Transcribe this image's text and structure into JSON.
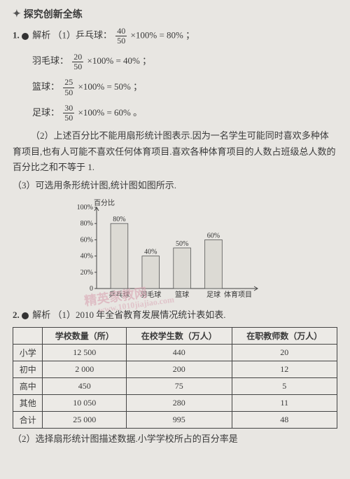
{
  "section_title": "探究创新全练",
  "star_glyph": "✦",
  "problems": {
    "p1": {
      "number": "1.",
      "label": "解析",
      "part1_prefix": "（1）乒乓球：",
      "formulas": [
        {
          "name": "乒乓球",
          "num": "40",
          "den": "50",
          "pct": "80%"
        },
        {
          "name": "羽毛球",
          "num": "20",
          "den": "50",
          "pct": "40%"
        },
        {
          "name": "篮球",
          "num": "25",
          "den": "50",
          "pct": "50%"
        },
        {
          "name": "足球",
          "num": "30",
          "den": "50",
          "pct": "60%"
        }
      ],
      "times100": "×100% =",
      "semi": "；",
      "period": "。",
      "colon": "：",
      "part2": "（2）上述百分比不能用扇形统计图表示.因为一名学生可能同时喜欢多种体育项目,也有人可能不喜欢任何体育项目.喜欢各种体育项目的人数占班级总人数的百分比之和不等于 1.",
      "part3": "（3）可选用条形统计图,统计图如图所示.",
      "chart": {
        "type": "bar",
        "y_label": "百分比",
        "x_label": "体育项目",
        "y_ticks": [
          "0",
          "20%",
          "40%",
          "60%",
          "80%",
          "100%"
        ],
        "ylim": [
          0,
          100
        ],
        "categories": [
          "乒乓球",
          "羽毛球",
          "篮球",
          "足球"
        ],
        "values": [
          80,
          40,
          50,
          60
        ],
        "value_labels": [
          "80%",
          "40%",
          "50%",
          "60%"
        ],
        "bar_fill": "#dcdad4",
        "bar_stroke": "#555",
        "axis_color": "#444",
        "label_fontsize": 10,
        "bar_width_ratio": 0.55
      }
    },
    "p2": {
      "number": "2.",
      "label": "解析",
      "part1": "（1）2010 年全省教育发展情况统计表如表.",
      "table": {
        "columns": [
          "",
          "学校数量（所）",
          "在校学生数（万人）",
          "在职教师数（万人）"
        ],
        "rows": [
          [
            "小学",
            "12 500",
            "440",
            "20"
          ],
          [
            "初中",
            "2 000",
            "200",
            "12"
          ],
          [
            "高中",
            "450",
            "75",
            "5"
          ],
          [
            "其他",
            "10 050",
            "280",
            "11"
          ],
          [
            "合计",
            "25 000",
            "995",
            "48"
          ]
        ]
      },
      "part2": "（2）选择扇形统计图描述数据.小学学校所占的百分率是"
    }
  },
  "watermark": {
    "line1": "精英家教网",
    "line2": "www.1010jiajiao.com"
  }
}
